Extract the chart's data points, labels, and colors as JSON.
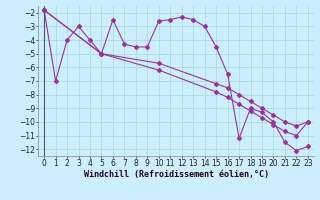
{
  "xlabel": "Windchill (Refroidissement éolien,°C)",
  "x_ticks": [
    0,
    1,
    2,
    3,
    4,
    5,
    6,
    7,
    8,
    9,
    10,
    11,
    12,
    13,
    14,
    15,
    16,
    17,
    18,
    19,
    20,
    21,
    22,
    23
  ],
  "ylim": [
    -12.5,
    -1.5
  ],
  "xlim": [
    -0.5,
    23.5
  ],
  "y_ticks": [
    -12,
    -11,
    -10,
    -9,
    -8,
    -7,
    -6,
    -5,
    -4,
    -3,
    -2
  ],
  "line1_x": [
    0,
    1,
    2,
    3,
    4,
    5,
    6,
    7,
    8,
    9,
    10,
    11,
    12,
    13,
    14,
    15,
    16,
    17,
    18,
    19,
    20,
    21,
    22,
    23
  ],
  "line1_y": [
    -1.8,
    -7.0,
    -4.0,
    -3.0,
    -4.0,
    -5.0,
    -2.5,
    -4.3,
    -4.5,
    -4.5,
    -2.6,
    -2.5,
    -2.3,
    -2.5,
    -3.0,
    -4.5,
    -6.5,
    -11.2,
    -9.0,
    -9.3,
    -10.0,
    -11.5,
    -12.1,
    -11.8
  ],
  "line2_x": [
    0,
    5,
    10,
    15,
    16,
    17,
    18,
    19,
    20,
    21,
    22,
    23
  ],
  "line2_y": [
    -1.8,
    -5.0,
    -5.7,
    -7.2,
    -7.5,
    -8.0,
    -8.5,
    -9.0,
    -9.5,
    -10.0,
    -10.3,
    -10.0
  ],
  "line3_x": [
    0,
    5,
    10,
    15,
    16,
    17,
    18,
    19,
    20,
    21,
    22,
    23
  ],
  "line3_y": [
    -1.8,
    -5.0,
    -6.2,
    -7.8,
    -8.2,
    -8.7,
    -9.2,
    -9.7,
    -10.2,
    -10.7,
    -11.0,
    -10.0
  ],
  "color": "#993399",
  "bg_color": "#cceeff",
  "grid_color": "#aadddd",
  "tick_fontsize": 5.5,
  "label_fontsize": 6.0
}
